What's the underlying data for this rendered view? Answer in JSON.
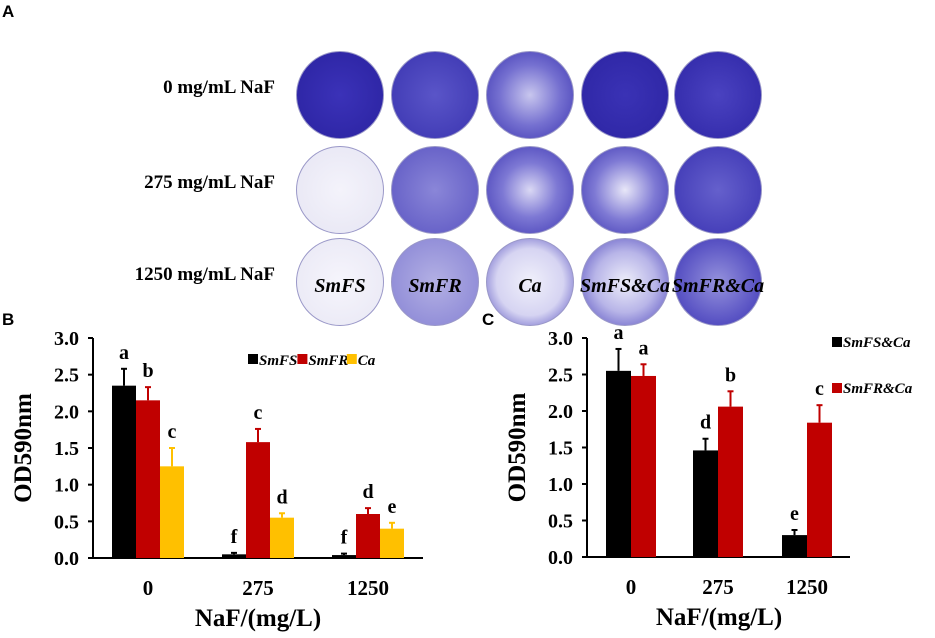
{
  "panelA": {
    "letter": "A",
    "rows": [
      "0 mg/mL NaF",
      "275 mg/mL NaF",
      "1250 mg/mL NaF"
    ],
    "columns": [
      "SmFS",
      "SmFR",
      "Ca",
      "SmFS&Ca",
      "SmFR&Ca"
    ]
  },
  "chart_data": [
    {
      "panel": "B",
      "type": "bar",
      "xlabel": "NaF/(mg/L)",
      "ylabel": "OD590nm",
      "ylim": [
        0,
        3.0
      ],
      "yticks": [
        "0.0",
        "0.5",
        "1.0",
        "1.5",
        "2.0",
        "2.5",
        "3.0"
      ],
      "categories": [
        "0",
        "275",
        "1250"
      ],
      "legend_position": "top-right",
      "series": [
        {
          "name": "SmFS",
          "color": "#000000",
          "values": [
            2.35,
            0.05,
            0.04
          ],
          "errors": [
            0.23,
            0.02,
            0.02
          ],
          "letters": [
            "a",
            "f",
            "f"
          ]
        },
        {
          "name": "SmFR",
          "color": "#c00000",
          "values": [
            2.15,
            1.58,
            0.6
          ],
          "errors": [
            0.18,
            0.18,
            0.08
          ],
          "letters": [
            "b",
            "c",
            "d"
          ]
        },
        {
          "name": "Ca",
          "color": "#ffc000",
          "values": [
            1.25,
            0.55,
            0.4
          ],
          "errors": [
            0.25,
            0.06,
            0.08
          ],
          "letters": [
            "c",
            "d",
            "e"
          ]
        }
      ]
    },
    {
      "panel": "C",
      "type": "bar",
      "xlabel": "NaF/(mg/L)",
      "ylabel": "OD590nm",
      "ylim": [
        0,
        3.0
      ],
      "yticks": [
        "0.0",
        "0.5",
        "1.0",
        "1.5",
        "2.0",
        "2.5",
        "3.0"
      ],
      "categories": [
        "0",
        "275",
        "1250"
      ],
      "legend_position": "top-right",
      "series": [
        {
          "name": "SmFS&Ca",
          "color": "#000000",
          "values": [
            2.55,
            1.46,
            0.3
          ],
          "errors": [
            0.3,
            0.16,
            0.07
          ],
          "letters": [
            "a",
            "d",
            "e"
          ]
        },
        {
          "name": "SmFR&Ca",
          "color": "#c00000",
          "values": [
            2.48,
            2.06,
            1.84
          ],
          "errors": [
            0.16,
            0.21,
            0.24
          ],
          "letters": [
            "a",
            "b",
            "c"
          ]
        }
      ]
    }
  ]
}
